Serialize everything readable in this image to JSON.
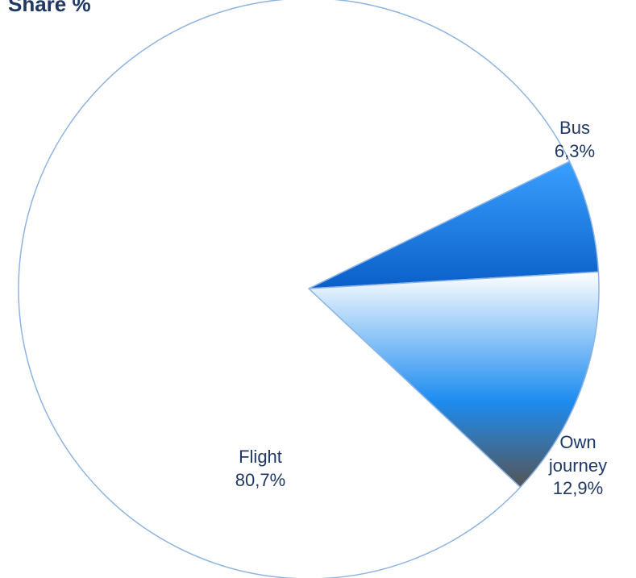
{
  "chart_data": {
    "type": "pie",
    "title": "Share %",
    "categories": [
      "Bus",
      "Own journey",
      "Flight"
    ],
    "values": [
      6.3,
      12.9,
      80.7
    ],
    "value_labels": [
      "6,3%",
      "12,9%",
      "80,7%"
    ],
    "colors": [
      "#1a7fe8",
      "#1e90ff",
      "#ffffff"
    ]
  }
}
